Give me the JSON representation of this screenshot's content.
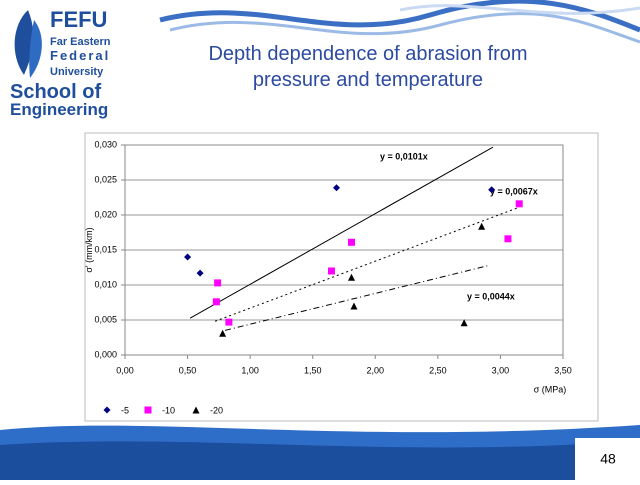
{
  "slide": {
    "logo": {
      "name": "FEFU",
      "lines": [
        "Far Eastern",
        "Federal",
        "University"
      ],
      "school": [
        "School of",
        "Engineering"
      ]
    },
    "title_lines": [
      "Depth dependence of abrasion from",
      "pressure and temperature"
    ],
    "page_number": "48"
  },
  "chart_data": {
    "type": "scatter",
    "x_label": "σ (MPa)",
    "y_label": "σ' (mm/km)",
    "xlim": [
      0,
      3.5
    ],
    "xticks": [
      {
        "value": 0,
        "label": "0,00"
      },
      {
        "value": 0.5,
        "label": "0,50"
      },
      {
        "value": 1,
        "label": "1,00"
      },
      {
        "value": 1.5,
        "label": "1,50"
      },
      {
        "value": 2,
        "label": "2,00"
      },
      {
        "value": 2.5,
        "label": "2,50"
      },
      {
        "value": 3,
        "label": "3,00"
      },
      {
        "value": 3.5,
        "label": "3,50"
      }
    ],
    "ylim": [
      0,
      0.03
    ],
    "yticks": [
      {
        "value": 0,
        "label": "0,000"
      },
      {
        "value": 0.005,
        "label": "0,005"
      },
      {
        "value": 0.01,
        "label": "0,010"
      },
      {
        "value": 0.015,
        "label": "0,015"
      },
      {
        "value": 0.02,
        "label": "0,020"
      },
      {
        "value": 0.025,
        "label": "0,025"
      },
      {
        "value": 0.03,
        "label": "0,030"
      }
    ],
    "grid": true,
    "legend": "bottom",
    "series": [
      {
        "name": "-5",
        "color": "#000080",
        "marker": "diamond",
        "x": [
          0.5,
          0.6,
          1.69,
          2.93
        ],
        "values": [
          0.014,
          0.0117,
          0.0239,
          0.0236
        ]
      },
      {
        "name": "-10",
        "color": "#ff00ff",
        "marker": "square",
        "x": [
          0.74,
          0.73,
          0.83,
          1.65,
          1.81,
          3.06,
          3.15
        ],
        "values": [
          0.0103,
          0.0076,
          0.0047,
          0.012,
          0.0161,
          0.0166,
          0.0216
        ]
      },
      {
        "name": "-20",
        "color": "#000000",
        "marker": "triangle",
        "x": [
          0.78,
          1.81,
          1.83,
          2.71,
          2.85
        ],
        "values": [
          0.0031,
          0.0111,
          0.007,
          0.0046,
          0.0184
        ]
      }
    ],
    "trendlines": [
      {
        "label": "y = 0,0101x",
        "slope": 0.0101,
        "x": [
          0.52,
          2.94
        ],
        "style": "solid"
      },
      {
        "label": "y = 0,0067x",
        "slope": 0.0067,
        "x": [
          0.72,
          3.15
        ],
        "style": "dotted"
      },
      {
        "label": "y = 0,0044x",
        "slope": 0.0044,
        "x": [
          0.8,
          2.9
        ],
        "style": "dashdot"
      }
    ]
  }
}
